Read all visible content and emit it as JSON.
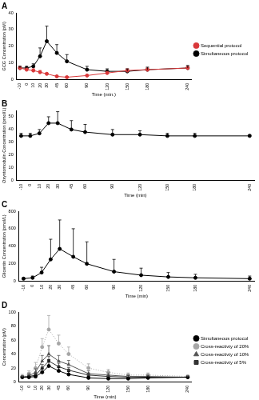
{
  "chart_data": [
    {
      "type": "line",
      "title": "A",
      "x_label": "Time (min.)",
      "y_label": "GCG Concentration (pM)",
      "x": [
        -10,
        0,
        10,
        20,
        30,
        45,
        60,
        90,
        120,
        150,
        180,
        240
      ],
      "xlim": [
        -15,
        245
      ],
      "xticks": [
        -10,
        0,
        10,
        20,
        30,
        45,
        60,
        90,
        120,
        150,
        180,
        240
      ],
      "ylim": [
        0,
        40
      ],
      "yticks": [
        0,
        10,
        20,
        30,
        40
      ],
      "grid": false,
      "legend": "right",
      "series": [
        {
          "name": "Sequential protocol",
          "color": "#d9383a",
          "marker": "circle",
          "line_style": "solid",
          "values": [
            7,
            6,
            5.5,
            4.5,
            3.5,
            2,
            1.5,
            2.5,
            4,
            5.5,
            6,
            7
          ],
          "errors": [
            1,
            1,
            1,
            1,
            0.5,
            0.5,
            0.5,
            0.5,
            1,
            1,
            1,
            1
          ]
        },
        {
          "name": "Simultaneous protocol",
          "color": "#000000",
          "marker": "circle",
          "line_style": "solid",
          "values": [
            7,
            7,
            8,
            14,
            23,
            16,
            11,
            6,
            5,
            5,
            6,
            7
          ],
          "errors": [
            1,
            1,
            1.5,
            5,
            9,
            5,
            4,
            2,
            1.5,
            1.5,
            1.5,
            1.5
          ]
        }
      ]
    },
    {
      "type": "line",
      "title": "B",
      "x_label": "Time (min)",
      "y_label": "Oxyntomodulin Concentration (pmol/L)",
      "x": [
        -10,
        0,
        10,
        20,
        30,
        45,
        60,
        90,
        120,
        150,
        180,
        240
      ],
      "xlim": [
        -15,
        245
      ],
      "xticks": [
        -10,
        0,
        10,
        20,
        30,
        45,
        60,
        90,
        120,
        150,
        180,
        240
      ],
      "ylim": [
        0,
        55
      ],
      "yticks": [
        0,
        10,
        20,
        30,
        40,
        50
      ],
      "grid": false,
      "series": [
        {
          "color": "#000000",
          "marker": "circle",
          "line_style": "solid",
          "values": [
            35,
            35,
            37,
            45,
            45,
            40,
            38,
            36,
            36,
            35,
            35,
            35
          ],
          "errors": [
            2,
            2,
            3,
            5,
            9,
            7,
            6,
            4,
            3,
            2,
            2,
            1
          ]
        }
      ]
    },
    {
      "type": "line",
      "title": "C",
      "x_label": "Time (min)",
      "y_label": "Glicentin Concentration (pmol/L)",
      "x": [
        -10,
        0,
        10,
        20,
        30,
        45,
        60,
        90,
        120,
        150,
        180,
        240
      ],
      "xlim": [
        -15,
        245
      ],
      "xticks": [
        -10,
        0,
        10,
        20,
        30,
        45,
        60,
        90,
        120,
        150,
        180,
        240
      ],
      "ylim": [
        0,
        800
      ],
      "yticks": [
        0,
        200,
        400,
        600,
        800
      ],
      "grid": false,
      "series": [
        {
          "color": "#000000",
          "marker": "circle",
          "line_style": "solid",
          "values": [
            30,
            40,
            100,
            250,
            370,
            280,
            200,
            110,
            70,
            50,
            40,
            30
          ],
          "errors": [
            10,
            20,
            60,
            230,
            330,
            320,
            250,
            140,
            80,
            50,
            40,
            30
          ]
        }
      ]
    },
    {
      "type": "line",
      "title": "D",
      "x_label": "Time (min)",
      "y_label": "Concentration (pM)",
      "x": [
        -10,
        0,
        10,
        20,
        30,
        45,
        60,
        90,
        120,
        150,
        180,
        240
      ],
      "xlim": [
        -15,
        245
      ],
      "xticks": [
        -10,
        0,
        10,
        20,
        30,
        45,
        60,
        90,
        120,
        150,
        180,
        240
      ],
      "ylim": [
        0,
        100
      ],
      "yticks": [
        0,
        20,
        40,
        60,
        80,
        100
      ],
      "grid": false,
      "legend": "right",
      "series": [
        {
          "name": "Simultaneous protocol",
          "color": "#000000",
          "marker": "circle",
          "line_style": "solid",
          "values": [
            7,
            7,
            8,
            14,
            23,
            16,
            11,
            6,
            5,
            5,
            6,
            7
          ],
          "errors": [
            1,
            1,
            1.5,
            5,
            9,
            5,
            4,
            2,
            1.5,
            1.5,
            1.5,
            1.5
          ]
        },
        {
          "name": "Cross-reactivty of 20%",
          "color": "#a6a6a6",
          "marker": "circle",
          "line_style": "dotted",
          "values": [
            8,
            12,
            20,
            50,
            75,
            55,
            40,
            20,
            14,
            10,
            10,
            8
          ],
          "errors": [
            3,
            4,
            8,
            12,
            20,
            12,
            10,
            6,
            4,
            3,
            3,
            2
          ]
        },
        {
          "name": "Cross-reactivty of 10%",
          "color": "#555555",
          "marker": "triangle",
          "line_style": "solid",
          "values": [
            7,
            9,
            14,
            30,
            40,
            30,
            25,
            12,
            10,
            8,
            8,
            7
          ],
          "errors": [
            2,
            3,
            5,
            8,
            12,
            8,
            6,
            4,
            3,
            2,
            2,
            2
          ]
        },
        {
          "name": "Cross-reactivty of 5%",
          "color": "#333333",
          "marker": "rect",
          "line_style": "solid",
          "values": [
            7,
            8,
            10,
            20,
            30,
            22,
            17,
            10,
            8,
            7,
            7,
            7
          ],
          "errors": [
            1,
            2,
            3,
            5,
            7,
            5,
            4,
            3,
            2,
            2,
            2,
            1
          ]
        }
      ]
    }
  ]
}
